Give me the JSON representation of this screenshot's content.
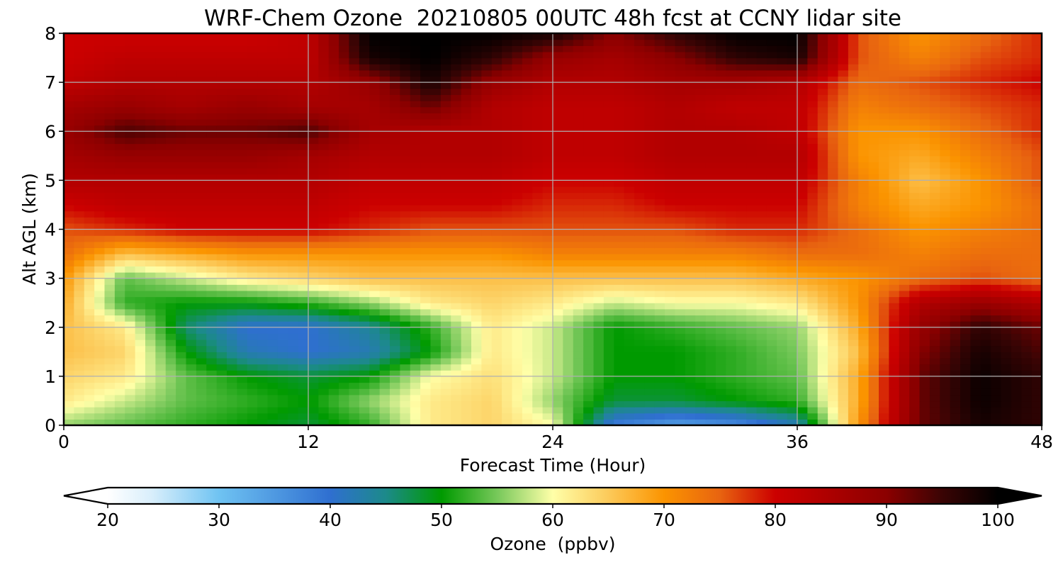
{
  "chart_data": {
    "type": "heatmap",
    "title": "WRF-Chem Ozone  20210805 00UTC 48h fcst at CCNY lidar site",
    "xlabel": "Forecast Time (Hour)",
    "ylabel": "Alt AGL (km)",
    "xlim": [
      0,
      48
    ],
    "ylim": [
      0,
      8
    ],
    "xticks": [
      0,
      12,
      24,
      36,
      48
    ],
    "yticks": [
      0,
      1,
      2,
      3,
      4,
      5,
      6,
      7,
      8
    ],
    "grid": true,
    "x": [
      0,
      3,
      6,
      9,
      12,
      15,
      18,
      21,
      24,
      27,
      30,
      33,
      36,
      39,
      42,
      45,
      48
    ],
    "y": [
      0,
      0.5,
      1,
      1.5,
      2,
      2.5,
      3,
      3.5,
      4,
      4.5,
      5,
      5.5,
      6,
      6.5,
      7,
      7.5,
      8
    ],
    "z": [
      [
        56,
        54,
        52,
        50,
        48,
        52,
        62,
        64,
        60,
        38,
        34,
        36,
        42,
        70,
        92,
        98,
        96
      ],
      [
        62,
        58,
        54,
        52,
        50,
        56,
        62,
        64,
        56,
        48,
        48,
        50,
        52,
        68,
        92,
        99,
        96
      ],
      [
        64,
        62,
        54,
        50,
        48,
        50,
        60,
        63,
        58,
        50,
        50,
        52,
        54,
        68,
        92,
        99,
        96
      ],
      [
        66,
        64,
        50,
        42,
        40,
        42,
        50,
        62,
        58,
        50,
        50,
        52,
        55,
        66,
        90,
        98,
        94
      ],
      [
        66,
        62,
        46,
        40,
        40,
        44,
        52,
        62,
        58,
        50,
        52,
        54,
        56,
        68,
        88,
        96,
        92
      ],
      [
        68,
        52,
        50,
        50,
        52,
        56,
        62,
        64,
        62,
        58,
        60,
        60,
        62,
        70,
        84,
        88,
        84
      ],
      [
        70,
        54,
        58,
        62,
        64,
        66,
        66,
        66,
        66,
        66,
        66,
        66,
        68,
        70,
        74,
        76,
        74
      ],
      [
        74,
        66,
        68,
        70,
        70,
        70,
        70,
        70,
        72,
        72,
        72,
        72,
        74,
        74,
        72,
        74,
        74
      ],
      [
        76,
        78,
        80,
        80,
        80,
        78,
        76,
        76,
        76,
        76,
        76,
        78,
        78,
        74,
        70,
        72,
        74
      ],
      [
        80,
        82,
        82,
        82,
        82,
        80,
        80,
        80,
        78,
        78,
        80,
        80,
        80,
        72,
        68,
        70,
        74
      ],
      [
        84,
        84,
        84,
        84,
        84,
        82,
        82,
        82,
        80,
        80,
        82,
        82,
        82,
        72,
        66,
        70,
        76
      ],
      [
        86,
        88,
        88,
        88,
        86,
        84,
        84,
        84,
        82,
        82,
        84,
        84,
        84,
        70,
        68,
        72,
        76
      ],
      [
        88,
        94,
        92,
        92,
        94,
        86,
        84,
        84,
        82,
        82,
        84,
        84,
        82,
        70,
        70,
        74,
        78
      ],
      [
        86,
        88,
        86,
        88,
        86,
        86,
        92,
        84,
        82,
        82,
        84,
        82,
        82,
        72,
        74,
        76,
        78
      ],
      [
        82,
        84,
        84,
        84,
        84,
        88,
        98,
        88,
        84,
        84,
        86,
        86,
        84,
        74,
        76,
        78,
        80
      ],
      [
        80,
        82,
        82,
        82,
        82,
        98,
        100,
        96,
        88,
        86,
        90,
        96,
        98,
        76,
        72,
        76,
        78
      ],
      [
        80,
        80,
        80,
        80,
        82,
        100,
        100,
        100,
        98,
        90,
        96,
        100,
        100,
        76,
        70,
        74,
        78
      ]
    ],
    "colorbar": {
      "label": "Ozone  (ppbv)",
      "vmin": 20,
      "vmax": 100,
      "ticks": [
        20,
        30,
        40,
        50,
        60,
        70,
        80,
        90,
        100
      ],
      "extend": "both",
      "stops": [
        {
          "v": 20,
          "c": "#ffffff"
        },
        {
          "v": 24,
          "c": "#d8eefb"
        },
        {
          "v": 30,
          "c": "#6fc3f2"
        },
        {
          "v": 40,
          "c": "#2f6fd0"
        },
        {
          "v": 45,
          "c": "#1c8a8a"
        },
        {
          "v": 50,
          "c": "#009a00"
        },
        {
          "v": 55,
          "c": "#77c85a"
        },
        {
          "v": 60,
          "c": "#ffffa8"
        },
        {
          "v": 65,
          "c": "#fcca5a"
        },
        {
          "v": 70,
          "c": "#fb9400"
        },
        {
          "v": 75,
          "c": "#e86410"
        },
        {
          "v": 80,
          "c": "#cc0000"
        },
        {
          "v": 90,
          "c": "#8b0000"
        },
        {
          "v": 95,
          "c": "#3a0404"
        },
        {
          "v": 100,
          "c": "#000000"
        }
      ]
    }
  }
}
